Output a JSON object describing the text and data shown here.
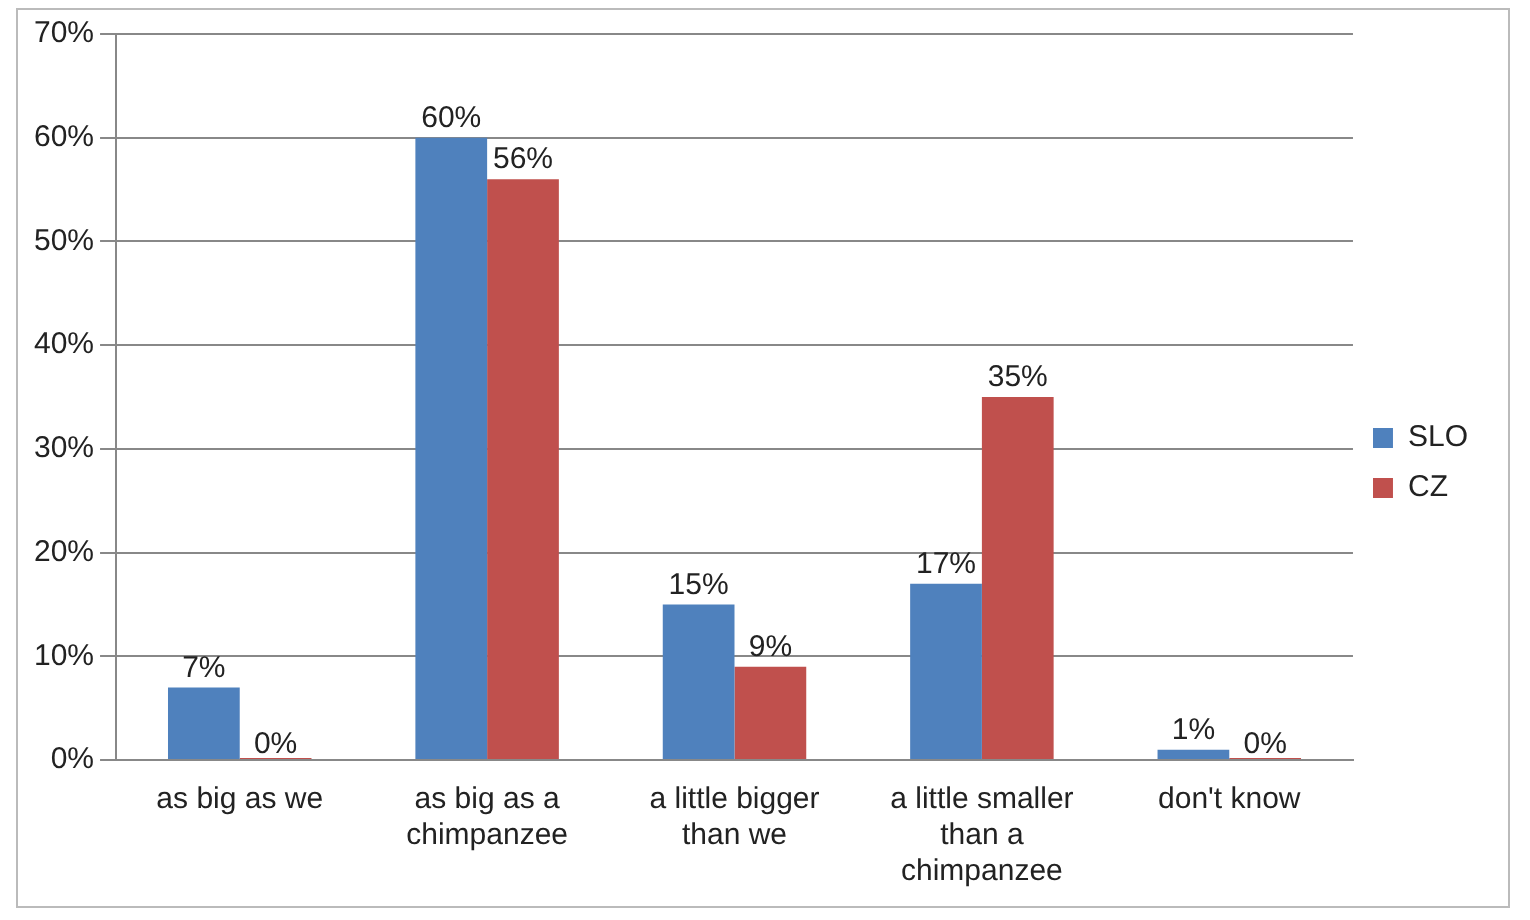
{
  "chart_data": {
    "type": "bar",
    "categories": [
      "as big as we",
      "as big as a chimpanzee",
      "a little bigger than we",
      "a little smaller than a chimpanzee",
      "don't know"
    ],
    "series": [
      {
        "name": "SLO",
        "color": "#4f81bd",
        "values": [
          7,
          60,
          15,
          17,
          1
        ],
        "value_labels": [
          "7%",
          "60%",
          "15%",
          "17%",
          "1%"
        ]
      },
      {
        "name": "CZ",
        "color": "#c0504d",
        "values": [
          0,
          56,
          9,
          35,
          0
        ],
        "value_labels": [
          "0%",
          "56%",
          "9%",
          "35%",
          "0%"
        ]
      }
    ],
    "ylim": [
      0,
      70
    ],
    "yticks": [
      {
        "value": 0,
        "label": "0%"
      },
      {
        "value": 10,
        "label": "10%"
      },
      {
        "value": 20,
        "label": "20%"
      },
      {
        "value": 30,
        "label": "30%"
      },
      {
        "value": 40,
        "label": "40%"
      },
      {
        "value": 50,
        "label": "50%"
      },
      {
        "value": 60,
        "label": "60%"
      },
      {
        "value": 70,
        "label": "70%"
      }
    ],
    "grid": "y",
    "legend": "right"
  }
}
